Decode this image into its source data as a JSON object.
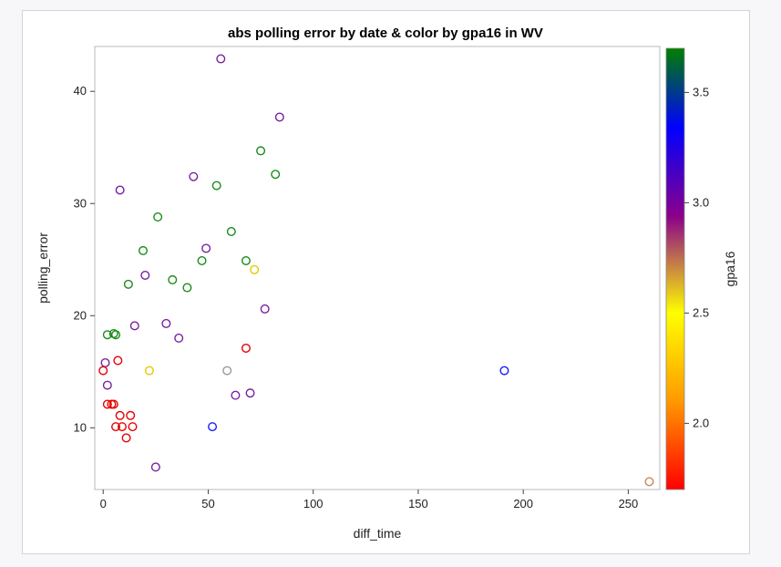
{
  "chart_data": {
    "type": "scatter",
    "title": "abs polling error by date & color by gpa16 in WV",
    "xlabel": "diff_time",
    "ylabel": "polling_error",
    "colorbar_label": "gpa16",
    "xlim": [
      -4,
      265
    ],
    "ylim": [
      4.5,
      44
    ],
    "xticks": [
      0,
      50,
      100,
      150,
      200,
      250
    ],
    "yticks": [
      10,
      20,
      30,
      40
    ],
    "colorbar_range": [
      1.7,
      3.7
    ],
    "colorbar_ticks": [
      2.0,
      2.5,
      3.0,
      3.5
    ],
    "colormap": [
      {
        "stop": 0.0,
        "color": "#ff0000"
      },
      {
        "stop": 0.2,
        "color": "#ff9900"
      },
      {
        "stop": 0.4,
        "color": "#ffff00"
      },
      {
        "stop": 0.62,
        "color": "#8b008b"
      },
      {
        "stop": 0.82,
        "color": "#0000ff"
      },
      {
        "stop": 1.0,
        "color": "#008000"
      }
    ],
    "grid": false,
    "points": [
      {
        "x": 56,
        "y": 42.9,
        "color": "#7a1fa2"
      },
      {
        "x": 84,
        "y": 37.7,
        "color": "#7a1fa2"
      },
      {
        "x": 75,
        "y": 34.7,
        "color": "#1a8c1a"
      },
      {
        "x": 82,
        "y": 32.6,
        "color": "#1a8c1a"
      },
      {
        "x": 43,
        "y": 32.4,
        "color": "#7a1fa2"
      },
      {
        "x": 54,
        "y": 31.6,
        "color": "#1a8c1a"
      },
      {
        "x": 8,
        "y": 31.2,
        "color": "#7a1fa2"
      },
      {
        "x": 26,
        "y": 28.8,
        "color": "#1a8c1a"
      },
      {
        "x": 61,
        "y": 27.5,
        "color": "#1a8c1a"
      },
      {
        "x": 49,
        "y": 26.0,
        "color": "#7a1fa2"
      },
      {
        "x": 19,
        "y": 25.8,
        "color": "#1a8c1a"
      },
      {
        "x": 68,
        "y": 24.9,
        "color": "#1a8c1a"
      },
      {
        "x": 47,
        "y": 24.9,
        "color": "#1a8c1a"
      },
      {
        "x": 72,
        "y": 24.1,
        "color": "#e6c800"
      },
      {
        "x": 20,
        "y": 23.6,
        "color": "#7a1fa2"
      },
      {
        "x": 33,
        "y": 23.2,
        "color": "#1a8c1a"
      },
      {
        "x": 12,
        "y": 22.8,
        "color": "#1a8c1a"
      },
      {
        "x": 40,
        "y": 22.5,
        "color": "#1a8c1a"
      },
      {
        "x": 77,
        "y": 20.6,
        "color": "#7a1fa2"
      },
      {
        "x": 30,
        "y": 19.3,
        "color": "#7a1fa2"
      },
      {
        "x": 15,
        "y": 19.1,
        "color": "#7a1fa2"
      },
      {
        "x": 5,
        "y": 18.4,
        "color": "#1a8c1a"
      },
      {
        "x": 6,
        "y": 18.3,
        "color": "#1a8c1a"
      },
      {
        "x": 2,
        "y": 18.3,
        "color": "#1a8c1a"
      },
      {
        "x": 36,
        "y": 18.0,
        "color": "#7a1fa2"
      },
      {
        "x": 68,
        "y": 17.1,
        "color": "#e60000"
      },
      {
        "x": 7,
        "y": 16.0,
        "color": "#e60000"
      },
      {
        "x": 1,
        "y": 15.8,
        "color": "#7a1fa2"
      },
      {
        "x": 0,
        "y": 15.1,
        "color": "#e60000"
      },
      {
        "x": 22,
        "y": 15.1,
        "color": "#e6c800"
      },
      {
        "x": 59,
        "y": 15.1,
        "color": "#999999"
      },
      {
        "x": 191,
        "y": 15.1,
        "color": "#1a1aff"
      },
      {
        "x": 2,
        "y": 13.8,
        "color": "#7a1fa2"
      },
      {
        "x": 70,
        "y": 13.1,
        "color": "#7a1fa2"
      },
      {
        "x": 63,
        "y": 12.9,
        "color": "#7a1fa2"
      },
      {
        "x": 2,
        "y": 12.1,
        "color": "#e60000"
      },
      {
        "x": 4,
        "y": 12.1,
        "color": "#e60000"
      },
      {
        "x": 5,
        "y": 12.1,
        "color": "#e60000"
      },
      {
        "x": 8,
        "y": 11.1,
        "color": "#e60000"
      },
      {
        "x": 13,
        "y": 11.1,
        "color": "#e60000"
      },
      {
        "x": 6,
        "y": 10.1,
        "color": "#e60000"
      },
      {
        "x": 9,
        "y": 10.1,
        "color": "#e60000"
      },
      {
        "x": 14,
        "y": 10.1,
        "color": "#e60000"
      },
      {
        "x": 52,
        "y": 10.1,
        "color": "#1a1aff"
      },
      {
        "x": 11,
        "y": 9.1,
        "color": "#e60000"
      },
      {
        "x": 25,
        "y": 6.5,
        "color": "#7a1fa2"
      },
      {
        "x": 260,
        "y": 5.2,
        "color": "#cc8855"
      }
    ]
  }
}
